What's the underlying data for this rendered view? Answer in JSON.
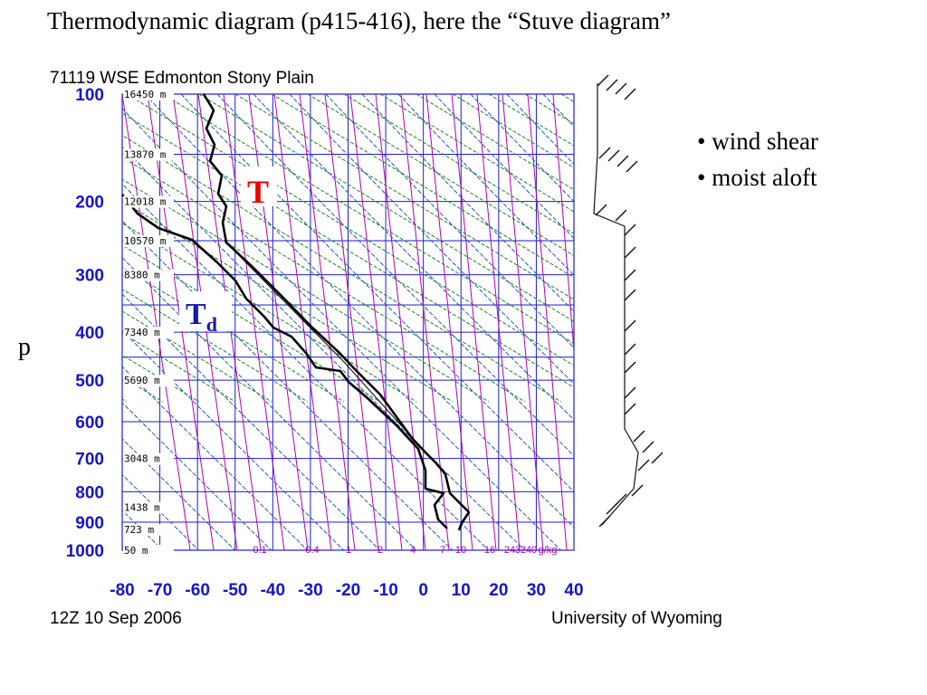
{
  "slide": {
    "title": "Thermodynamic diagram (p415-416), here the “Stuve diagram”",
    "y_axis_label": "p",
    "bullets": [
      "wind shear",
      "moist aloft"
    ]
  },
  "diagram": {
    "station_title": "71119 WSE Edmonton Stony Plain",
    "footer_left": "12Z 10 Sep 2006",
    "footer_right": "University of Wyoming",
    "temp_label": "T",
    "dew_label_main": "T",
    "dew_label_sub": "d",
    "pressure_ticks": [
      "100",
      "200",
      "300",
      "400",
      "500",
      "600",
      "700",
      "800",
      "900",
      "1000"
    ],
    "temperature_ticks": [
      "-80",
      "-70",
      "-60",
      "-50",
      "-40",
      "-30",
      "-20",
      "-10",
      "0",
      "10",
      "20",
      "30",
      "40"
    ],
    "height_labels": [
      "16450 m",
      "13870 m",
      "12018 m",
      "10570 m",
      "8380 m",
      "7340 m",
      "5690 m",
      "3048 m",
      "1438 m",
      "723 m",
      "50 m"
    ],
    "mixing_ratio_labels": [
      "0.1",
      "0.4",
      "1",
      "2",
      "4",
      "7",
      "10",
      "16",
      "24",
      "32",
      "40",
      "g/kg"
    ],
    "colors": {
      "grid": "#1e1ecc",
      "axis_text": "#1515c8",
      "dry_adiabat": "#1a8a1a",
      "moist_adiabat": "#2a55c0",
      "mixing_ratio": "#b000b0",
      "temperature_label": "#ee0000",
      "dewpoint_label": "#1a1aaa",
      "profile": "#000000"
    }
  }
}
